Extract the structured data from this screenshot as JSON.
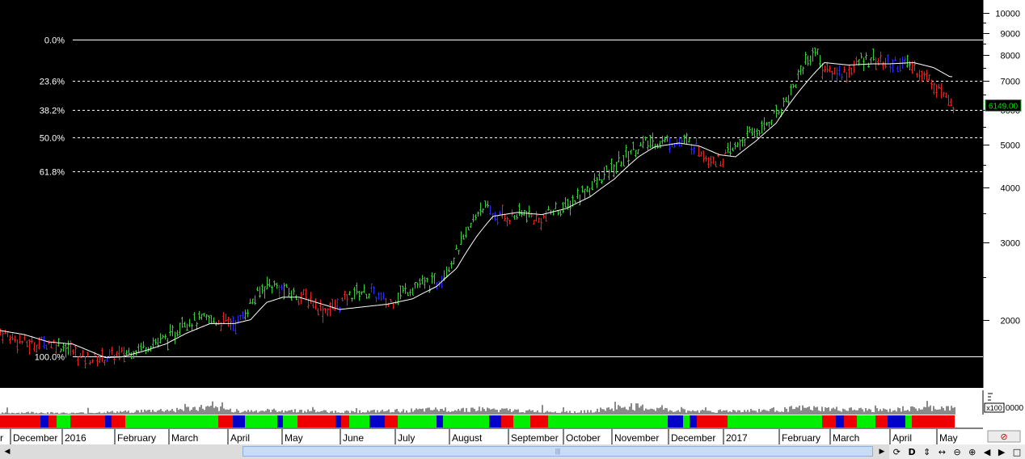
{
  "chart_data": {
    "type": "candlestick",
    "scale": "log",
    "ylim": [
      1500,
      10000
    ],
    "y_ticks": [
      10000,
      9000,
      8000,
      7000,
      6000,
      5000,
      4000,
      3000,
      2000
    ],
    "last_price": "6149.00",
    "fib_levels": [
      {
        "label": "0.0%",
        "value": 8700
      },
      {
        "label": "23.6%",
        "value": 7000
      },
      {
        "label": "38.2%",
        "value": 6000
      },
      {
        "label": "50.0%",
        "value": 5200
      },
      {
        "label": "61.8%",
        "value": 4350
      },
      {
        "label": "100.0%",
        "value": 1650
      }
    ],
    "x_labels": [
      "r",
      "December",
      "2016",
      "February",
      "March",
      "April",
      "May",
      "June",
      "July",
      "August",
      "September",
      "October",
      "November",
      "December",
      "2017",
      "February",
      "March",
      "April",
      "May"
    ],
    "volume_multiplier": "x100",
    "volume_axis_label": "0000",
    "price_anchors": [
      [
        0,
        1880
      ],
      [
        15,
        1820
      ],
      [
        35,
        1760
      ],
      [
        60,
        1780
      ],
      [
        80,
        1740
      ],
      [
        100,
        1640
      ],
      [
        120,
        1630
      ],
      [
        150,
        1670
      ],
      [
        170,
        1720
      ],
      [
        200,
        1800
      ],
      [
        215,
        1840
      ],
      [
        225,
        2000
      ],
      [
        240,
        1980
      ],
      [
        255,
        2000
      ],
      [
        275,
        1980
      ],
      [
        295,
        1970
      ],
      [
        310,
        2180
      ],
      [
        330,
        2420
      ],
      [
        345,
        2360
      ],
      [
        360,
        2300
      ],
      [
        380,
        2240
      ],
      [
        400,
        2100
      ],
      [
        420,
        2170
      ],
      [
        440,
        2320
      ],
      [
        460,
        2300
      ],
      [
        480,
        2170
      ],
      [
        495,
        2300
      ],
      [
        515,
        2400
      ],
      [
        540,
        2430
      ],
      [
        560,
        2750
      ],
      [
        580,
        3200
      ],
      [
        595,
        3650
      ],
      [
        610,
        3450
      ],
      [
        630,
        3420
      ],
      [
        650,
        3500
      ],
      [
        665,
        3350
      ],
      [
        685,
        3550
      ],
      [
        700,
        3600
      ],
      [
        720,
        3900
      ],
      [
        740,
        4150
      ],
      [
        760,
        4450
      ],
      [
        780,
        4850
      ],
      [
        800,
        5050
      ],
      [
        820,
        5100
      ],
      [
        840,
        5100
      ],
      [
        860,
        5000
      ],
      [
        875,
        4700
      ],
      [
        890,
        4600
      ],
      [
        905,
        4850
      ],
      [
        925,
        5250
      ],
      [
        945,
        5500
      ],
      [
        965,
        6050
      ],
      [
        980,
        6700
      ],
      [
        995,
        7700
      ],
      [
        1008,
        8200
      ],
      [
        1020,
        7400
      ],
      [
        1035,
        7300
      ],
      [
        1050,
        7350
      ],
      [
        1065,
        7800
      ],
      [
        1080,
        7900
      ],
      [
        1095,
        7650
      ],
      [
        1115,
        7700
      ],
      [
        1130,
        7500
      ],
      [
        1145,
        7150
      ],
      [
        1160,
        6800
      ],
      [
        1175,
        6149
      ]
    ],
    "ma_anchors": [
      [
        0,
        1890
      ],
      [
        30,
        1850
      ],
      [
        60,
        1780
      ],
      [
        90,
        1760
      ],
      [
        110,
        1700
      ],
      [
        130,
        1640
      ],
      [
        150,
        1645
      ],
      [
        175,
        1690
      ],
      [
        205,
        1760
      ],
      [
        230,
        1860
      ],
      [
        260,
        1960
      ],
      [
        290,
        1960
      ],
      [
        310,
        2000
      ],
      [
        330,
        2190
      ],
      [
        350,
        2250
      ],
      [
        370,
        2250
      ],
      [
        395,
        2180
      ],
      [
        420,
        2110
      ],
      [
        450,
        2140
      ],
      [
        480,
        2170
      ],
      [
        510,
        2230
      ],
      [
        540,
        2380
      ],
      [
        565,
        2620
      ],
      [
        590,
        3100
      ],
      [
        610,
        3440
      ],
      [
        640,
        3510
      ],
      [
        670,
        3470
      ],
      [
        700,
        3580
      ],
      [
        730,
        3810
      ],
      [
        760,
        4180
      ],
      [
        790,
        4700
      ],
      [
        810,
        4950
      ],
      [
        840,
        5050
      ],
      [
        865,
        4970
      ],
      [
        890,
        4750
      ],
      [
        910,
        4700
      ],
      [
        935,
        5100
      ],
      [
        960,
        5600
      ],
      [
        985,
        6500
      ],
      [
        1005,
        7200
      ],
      [
        1020,
        7700
      ],
      [
        1050,
        7600
      ],
      [
        1080,
        7650
      ],
      [
        1100,
        7650
      ],
      [
        1130,
        7700
      ],
      [
        1155,
        7500
      ],
      [
        1175,
        7150
      ]
    ],
    "volume_profile": [
      [
        0,
        2
      ],
      [
        40,
        3
      ],
      [
        90,
        2
      ],
      [
        150,
        4
      ],
      [
        220,
        7
      ],
      [
        250,
        10
      ],
      [
        300,
        5
      ],
      [
        350,
        6
      ],
      [
        420,
        4
      ],
      [
        480,
        5
      ],
      [
        540,
        7
      ],
      [
        590,
        8
      ],
      [
        650,
        5
      ],
      [
        720,
        4
      ],
      [
        760,
        9
      ],
      [
        775,
        12
      ],
      [
        830,
        6
      ],
      [
        880,
        5
      ],
      [
        940,
        6
      ],
      [
        990,
        9
      ],
      [
        1050,
        7
      ],
      [
        1100,
        6
      ],
      [
        1160,
        10
      ],
      [
        1180,
        8
      ]
    ],
    "trend_segments": [
      {
        "x1": 0,
        "x2": 50,
        "color": "red"
      },
      {
        "x1": 50,
        "x2": 60,
        "color": "blue"
      },
      {
        "x1": 60,
        "x2": 70,
        "color": "red"
      },
      {
        "x1": 70,
        "x2": 87,
        "color": "green"
      },
      {
        "x1": 87,
        "x2": 130,
        "color": "red"
      },
      {
        "x1": 130,
        "x2": 138,
        "color": "blue"
      },
      {
        "x1": 138,
        "x2": 155,
        "color": "red"
      },
      {
        "x1": 155,
        "x2": 270,
        "color": "green"
      },
      {
        "x1": 270,
        "x2": 288,
        "color": "red"
      },
      {
        "x1": 288,
        "x2": 303,
        "color": "blue"
      },
      {
        "x1": 303,
        "x2": 343,
        "color": "green"
      },
      {
        "x1": 343,
        "x2": 350,
        "color": "blue"
      },
      {
        "x1": 350,
        "x2": 368,
        "color": "green"
      },
      {
        "x1": 368,
        "x2": 415,
        "color": "red"
      },
      {
        "x1": 415,
        "x2": 422,
        "color": "blue"
      },
      {
        "x1": 422,
        "x2": 432,
        "color": "red"
      },
      {
        "x1": 432,
        "x2": 457,
        "color": "green"
      },
      {
        "x1": 457,
        "x2": 476,
        "color": "blue"
      },
      {
        "x1": 476,
        "x2": 492,
        "color": "red"
      },
      {
        "x1": 492,
        "x2": 540,
        "color": "green"
      },
      {
        "x1": 540,
        "x2": 548,
        "color": "blue"
      },
      {
        "x1": 548,
        "x2": 605,
        "color": "green"
      },
      {
        "x1": 605,
        "x2": 620,
        "color": "blue"
      },
      {
        "x1": 620,
        "x2": 635,
        "color": "red"
      },
      {
        "x1": 635,
        "x2": 656,
        "color": "green"
      },
      {
        "x1": 656,
        "x2": 678,
        "color": "red"
      },
      {
        "x1": 678,
        "x2": 826,
        "color": "green"
      },
      {
        "x1": 826,
        "x2": 845,
        "color": "blue"
      },
      {
        "x1": 845,
        "x2": 853,
        "color": "green"
      },
      {
        "x1": 853,
        "x2": 862,
        "color": "blue"
      },
      {
        "x1": 862,
        "x2": 900,
        "color": "red"
      },
      {
        "x1": 900,
        "x2": 1017,
        "color": "green"
      },
      {
        "x1": 1017,
        "x2": 1034,
        "color": "red"
      },
      {
        "x1": 1034,
        "x2": 1044,
        "color": "blue"
      },
      {
        "x1": 1044,
        "x2": 1060,
        "color": "red"
      },
      {
        "x1": 1060,
        "x2": 1083,
        "color": "green"
      },
      {
        "x1": 1083,
        "x2": 1098,
        "color": "red"
      },
      {
        "x1": 1098,
        "x2": 1120,
        "color": "blue"
      },
      {
        "x1": 1120,
        "x2": 1128,
        "color": "green"
      },
      {
        "x1": 1128,
        "x2": 1181,
        "color": "red"
      }
    ]
  },
  "colors": {
    "background": "#000000",
    "up": "#33cc33",
    "down": "#e82020",
    "neutral": "#2a2aff",
    "ma_line": "#ffffff",
    "fib_line": "#ffffff",
    "axis_text": "#000000",
    "price_tag": "#00cc00",
    "volume": "#8a8a8a",
    "band_green": "#00ee00",
    "band_red": "#ee0000",
    "band_blue": "#0000c8"
  },
  "icons": [
    "left-arrow",
    "right-arrow",
    "refresh-icon",
    "d-icon",
    "up-down-arrow-icon",
    "zoom-in-out-icon",
    "zoom-out-icon",
    "zoom-in-icon",
    "prev-icon",
    "next-icon",
    "window-icon",
    "delete-icon"
  ],
  "toolbar": {
    "refresh": "⟳",
    "d_label": "D",
    "updown": "⇕",
    "zoom_out_in": "↔",
    "minus": "⊖",
    "plus": "⊕",
    "prev": "◀",
    "next": "▶",
    "window": "□",
    "delete": "⊘",
    "scroll_left": "◀",
    "scroll_right": "▶",
    "thumb_grip": "|||"
  }
}
